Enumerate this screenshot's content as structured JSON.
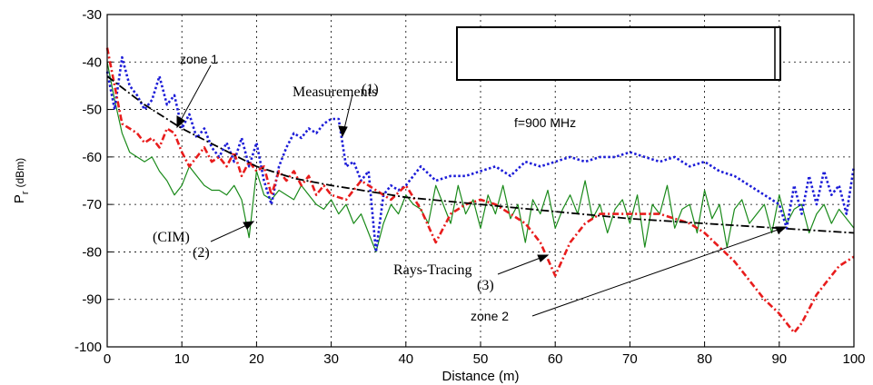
{
  "chart_data": {
    "type": "line",
    "title": "",
    "xlabel": "Distance (m)",
    "ylabel": "P",
    "ylabel_sub": "r",
    "ylabel_unit": "(dBm)",
    "xlim": [
      0,
      100
    ],
    "ylim": [
      -100,
      -30
    ],
    "xticks": [
      0,
      10,
      20,
      30,
      40,
      50,
      60,
      70,
      80,
      90,
      100
    ],
    "yticks": [
      -100,
      -90,
      -80,
      -70,
      -60,
      -50,
      -40,
      -30
    ],
    "grid": true,
    "colors": {
      "measurements": "#1c1cd8",
      "cim": "#1a8a1a",
      "rays": "#e81c1c",
      "fit": "#000000"
    },
    "series": [
      {
        "key": "measurements",
        "x": [
          0,
          1,
          2,
          3,
          4,
          5,
          6,
          7,
          8,
          9,
          10,
          11,
          12,
          13,
          14,
          15,
          16,
          17,
          18,
          19,
          20,
          21,
          22,
          23,
          24,
          25,
          26,
          27,
          28,
          29,
          30,
          31,
          32,
          33,
          34,
          35,
          36,
          37,
          38,
          39,
          40,
          42,
          44,
          46,
          48,
          50,
          52,
          54,
          56,
          58,
          60,
          62,
          64,
          66,
          68,
          70,
          72,
          74,
          76,
          78,
          80,
          82,
          84,
          86,
          88,
          90,
          91,
          92,
          93,
          94,
          95,
          96,
          97,
          98,
          99,
          100
        ],
        "y": [
          -42,
          -50,
          -39,
          -45,
          -47,
          -50,
          -48,
          -43,
          -49,
          -47,
          -54,
          -51,
          -56,
          -54,
          -58,
          -60,
          -57,
          -61,
          -56,
          -62,
          -57,
          -65,
          -70,
          -62,
          -58,
          -55,
          -56,
          -54,
          -55,
          -53,
          -52,
          -52,
          -62,
          -61,
          -65,
          -63,
          -80,
          -68,
          -66,
          -67,
          -66,
          -62,
          -65,
          -64,
          -64,
          -63,
          -62,
          -64,
          -61,
          -62,
          -61,
          -60,
          -61,
          -60,
          -60,
          -59,
          -60,
          -61,
          -60,
          -62,
          -61,
          -63,
          -64,
          -66,
          -68,
          -70,
          -75,
          -66,
          -72,
          -64,
          -70,
          -63,
          -68,
          -66,
          -72,
          -62
        ]
      },
      {
        "key": "cim",
        "x": [
          0,
          1,
          2,
          3,
          4,
          5,
          6,
          7,
          8,
          9,
          10,
          11,
          12,
          13,
          14,
          15,
          16,
          17,
          18,
          19,
          20,
          21,
          22,
          23,
          24,
          25,
          26,
          27,
          28,
          29,
          30,
          31,
          32,
          33,
          34,
          35,
          36,
          37,
          38,
          39,
          40,
          41,
          42,
          43,
          44,
          45,
          46,
          47,
          48,
          49,
          50,
          51,
          52,
          53,
          54,
          55,
          56,
          57,
          58,
          59,
          60,
          61,
          62,
          63,
          64,
          65,
          66,
          67,
          68,
          69,
          70,
          71,
          72,
          73,
          74,
          75,
          76,
          77,
          78,
          79,
          80,
          81,
          82,
          83,
          84,
          85,
          86,
          87,
          88,
          89,
          90,
          91,
          92,
          93,
          94,
          95,
          96,
          97,
          98,
          99,
          100
        ],
        "y": [
          -40,
          -48,
          -55,
          -59,
          -60,
          -61,
          -60,
          -63,
          -65,
          -68,
          -66,
          -62,
          -64,
          -66,
          -67,
          -67,
          -68,
          -66,
          -69,
          -77,
          -63,
          -68,
          -69,
          -67,
          -68,
          -69,
          -66,
          -68,
          -70,
          -71,
          -69,
          -72,
          -70,
          -74,
          -72,
          -76,
          -80,
          -74,
          -70,
          -72,
          -68,
          -70,
          -71,
          -74,
          -66,
          -70,
          -74,
          -66,
          -72,
          -69,
          -75,
          -68,
          -72,
          -66,
          -73,
          -70,
          -78,
          -69,
          -72,
          -67,
          -75,
          -71,
          -68,
          -72,
          -65,
          -73,
          -70,
          -76,
          -71,
          -69,
          -74,
          -68,
          -79,
          -70,
          -72,
          -66,
          -75,
          -71,
          -70,
          -76,
          -67,
          -73,
          -70,
          -79,
          -71,
          -69,
          -74,
          -72,
          -70,
          -76,
          -68,
          -74,
          -71,
          -70,
          -76,
          -72,
          -70,
          -74,
          -71,
          -73,
          -75
        ]
      },
      {
        "key": "rays",
        "x": [
          0,
          1,
          2,
          3,
          4,
          5,
          6,
          7,
          8,
          9,
          10,
          11,
          12,
          13,
          14,
          15,
          16,
          17,
          18,
          19,
          20,
          21,
          22,
          23,
          24,
          25,
          26,
          27,
          28,
          29,
          30,
          32,
          34,
          36,
          38,
          40,
          42,
          44,
          46,
          48,
          50,
          52,
          54,
          56,
          58,
          60,
          62,
          64,
          66,
          68,
          70,
          72,
          74,
          76,
          78,
          80,
          82,
          84,
          86,
          88,
          90,
          91,
          92,
          93,
          94,
          95,
          96,
          97,
          98,
          99,
          100
        ],
        "y": [
          -37,
          -45,
          -53,
          -54,
          -55,
          -57,
          -56,
          -58,
          -54,
          -55,
          -59,
          -62,
          -60,
          -58,
          -61,
          -60,
          -62,
          -59,
          -64,
          -61,
          -63,
          -62,
          -68,
          -63,
          -65,
          -63,
          -66,
          -64,
          -68,
          -66,
          -68,
          -69,
          -65,
          -67,
          -69,
          -66,
          -71,
          -78,
          -72,
          -70,
          -69,
          -70,
          -72,
          -74,
          -78,
          -85,
          -78,
          -74,
          -72,
          -72,
          -72,
          -72,
          -72,
          -73,
          -74,
          -76,
          -79,
          -82,
          -86,
          -90,
          -93,
          -95,
          -97,
          -95,
          -92,
          -89,
          -87,
          -85,
          -83,
          -82,
          -81
        ]
      },
      {
        "key": "fit",
        "x": [
          0,
          5,
          10,
          15,
          20,
          25,
          30,
          40,
          50,
          60,
          70,
          80,
          90,
          100
        ],
        "y": [
          -43,
          -49,
          -54,
          -58,
          -62,
          -64.5,
          -66,
          -68.5,
          -70,
          -71.5,
          -73,
          -74,
          -75,
          -76
        ]
      }
    ],
    "annotations": {
      "zone1": "zone 1",
      "zone2": "zone 2",
      "measurements": "Measurements",
      "label1": "(1)",
      "cim": "(CIM)",
      "label2": "(2)",
      "rays": "Rays-Tracing",
      "label3": "(3)",
      "freq": "f=900 MHz"
    }
  }
}
